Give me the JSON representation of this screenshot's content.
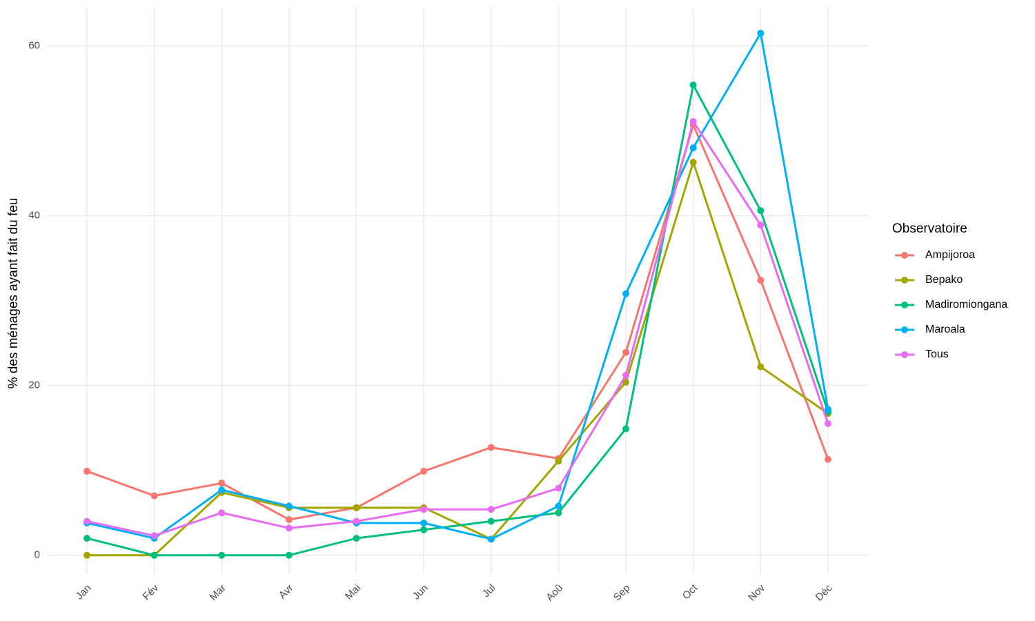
{
  "chart_data": {
    "type": "line",
    "y_label": "% des ménages ayant fait du feu",
    "legend_title": "Observatoire",
    "legend_position": "right",
    "grid": true,
    "categories": [
      "Jan",
      "Fév",
      "Mar",
      "Avr",
      "Mai",
      "Jun",
      "Jul",
      "Aoû",
      "Sep",
      "Oct",
      "Nov",
      "Déc"
    ],
    "ylim": [
      -2.3,
      64.6
    ],
    "yticks": [
      0,
      20,
      40,
      60
    ],
    "series": [
      {
        "name": "Ampijoroa",
        "color": "#f8766d",
        "values": [
          9.9,
          7.0,
          8.5,
          4.2,
          5.6,
          9.9,
          12.7,
          11.4,
          23.9,
          50.7,
          32.4,
          11.3
        ]
      },
      {
        "name": "Bepako",
        "color": "#a3a500",
        "values": [
          0,
          0,
          7.4,
          5.6,
          5.6,
          5.6,
          1.9,
          11.1,
          20.4,
          46.3,
          22.2,
          16.7
        ]
      },
      {
        "name": "Madiromiongana",
        "color": "#00bf7d",
        "values": [
          2.0,
          0,
          0,
          0,
          2.0,
          3.0,
          4.0,
          5.0,
          14.9,
          55.4,
          40.6,
          16.9
        ]
      },
      {
        "name": "Maroala",
        "color": "#00b0f6",
        "values": [
          3.8,
          2.0,
          7.7,
          5.8,
          3.8,
          3.8,
          1.9,
          5.8,
          30.8,
          48.0,
          61.5,
          17.2
        ]
      },
      {
        "name": "Tous",
        "color": "#e76bf3",
        "values": [
          4.0,
          2.3,
          5.0,
          3.2,
          4.0,
          5.4,
          5.4,
          7.9,
          21.2,
          51.1,
          38.9,
          15.5
        ]
      }
    ]
  }
}
